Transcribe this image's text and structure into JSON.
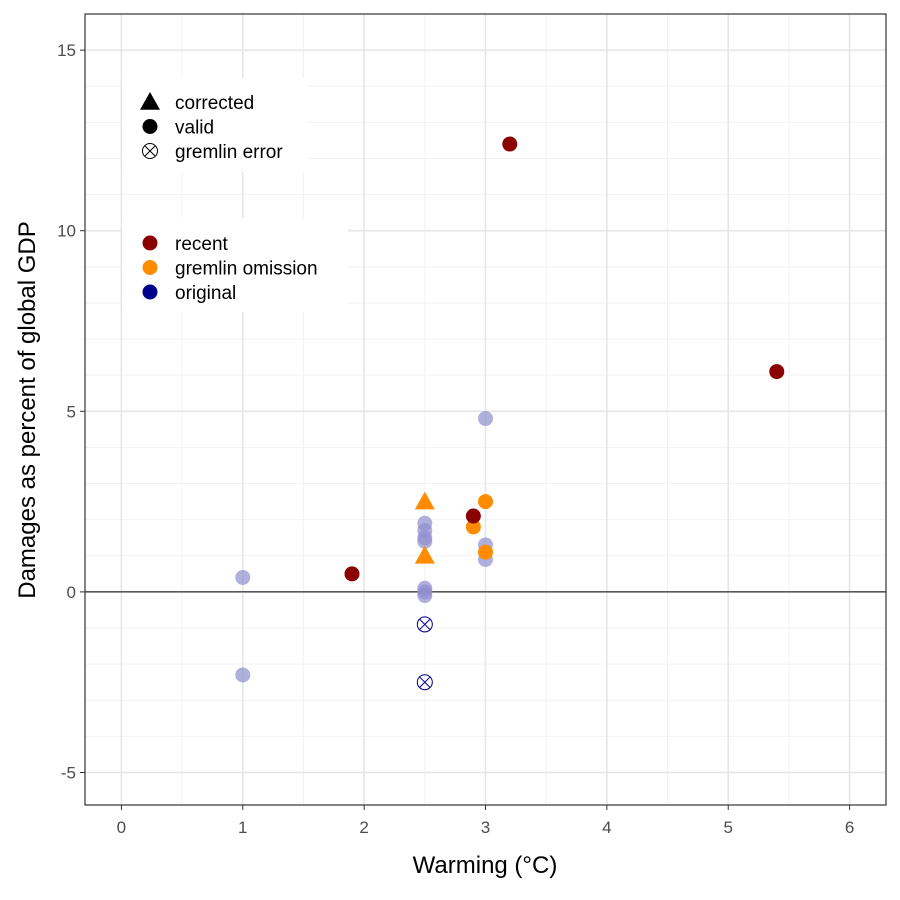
{
  "chart_data": {
    "type": "scatter",
    "xlabel": "Warming (°C)",
    "ylabel": "Damages as percent of global GDP",
    "xlim": [
      -0.3,
      6.3
    ],
    "ylim": [
      -5.9,
      16.0
    ],
    "x_ticks": [
      0,
      1,
      2,
      3,
      4,
      5,
      6
    ],
    "y_ticks": [
      -5,
      0,
      5,
      10,
      15
    ],
    "grid": true,
    "zero_line": 0,
    "legend_placement": "top-left",
    "shape_legend": [
      {
        "label": "corrected",
        "shape": "triangle"
      },
      {
        "label": "valid",
        "shape": "circle"
      },
      {
        "label": "gremlin error",
        "shape": "crossed-circle"
      }
    ],
    "color_legend": [
      {
        "label": "recent",
        "color": "#8B0000"
      },
      {
        "label": "gremlin omission",
        "color": "#FF8C00"
      },
      {
        "label": "original",
        "color": "#00008B"
      }
    ],
    "points": [
      {
        "x": 1.0,
        "y": 0.4,
        "group": "original",
        "shape": "circle"
      },
      {
        "x": 1.0,
        "y": -2.3,
        "group": "original",
        "shape": "circle"
      },
      {
        "x": 2.5,
        "y": 1.9,
        "group": "original",
        "shape": "circle"
      },
      {
        "x": 2.5,
        "y": 1.7,
        "group": "original",
        "shape": "circle"
      },
      {
        "x": 2.5,
        "y": 1.5,
        "group": "original",
        "shape": "circle"
      },
      {
        "x": 2.5,
        "y": 1.4,
        "group": "original",
        "shape": "circle"
      },
      {
        "x": 2.5,
        "y": 0.1,
        "group": "original",
        "shape": "circle"
      },
      {
        "x": 2.5,
        "y": 0.0,
        "group": "original",
        "shape": "circle"
      },
      {
        "x": 2.5,
        "y": -0.1,
        "group": "original",
        "shape": "circle"
      },
      {
        "x": 3.0,
        "y": 4.8,
        "group": "original",
        "shape": "circle"
      },
      {
        "x": 3.0,
        "y": 1.3,
        "group": "original",
        "shape": "circle"
      },
      {
        "x": 3.0,
        "y": 0.9,
        "group": "original",
        "shape": "circle"
      },
      {
        "x": 2.5,
        "y": -0.9,
        "group": "original",
        "shape": "crossed-circle"
      },
      {
        "x": 2.5,
        "y": -2.5,
        "group": "original",
        "shape": "crossed-circle"
      },
      {
        "x": 2.5,
        "y": 2.5,
        "group": "gremlin omission",
        "shape": "triangle"
      },
      {
        "x": 2.5,
        "y": 1.0,
        "group": "gremlin omission",
        "shape": "triangle"
      },
      {
        "x": 2.9,
        "y": 1.8,
        "group": "gremlin omission",
        "shape": "circle"
      },
      {
        "x": 3.0,
        "y": 2.5,
        "group": "gremlin omission",
        "shape": "circle"
      },
      {
        "x": 3.0,
        "y": 1.1,
        "group": "gremlin omission",
        "shape": "circle"
      },
      {
        "x": 1.9,
        "y": 0.5,
        "group": "recent",
        "shape": "circle"
      },
      {
        "x": 2.9,
        "y": 2.1,
        "group": "recent",
        "shape": "circle"
      },
      {
        "x": 3.2,
        "y": 12.4,
        "group": "recent",
        "shape": "circle"
      },
      {
        "x": 5.4,
        "y": 6.1,
        "group": "recent",
        "shape": "circle"
      }
    ]
  }
}
